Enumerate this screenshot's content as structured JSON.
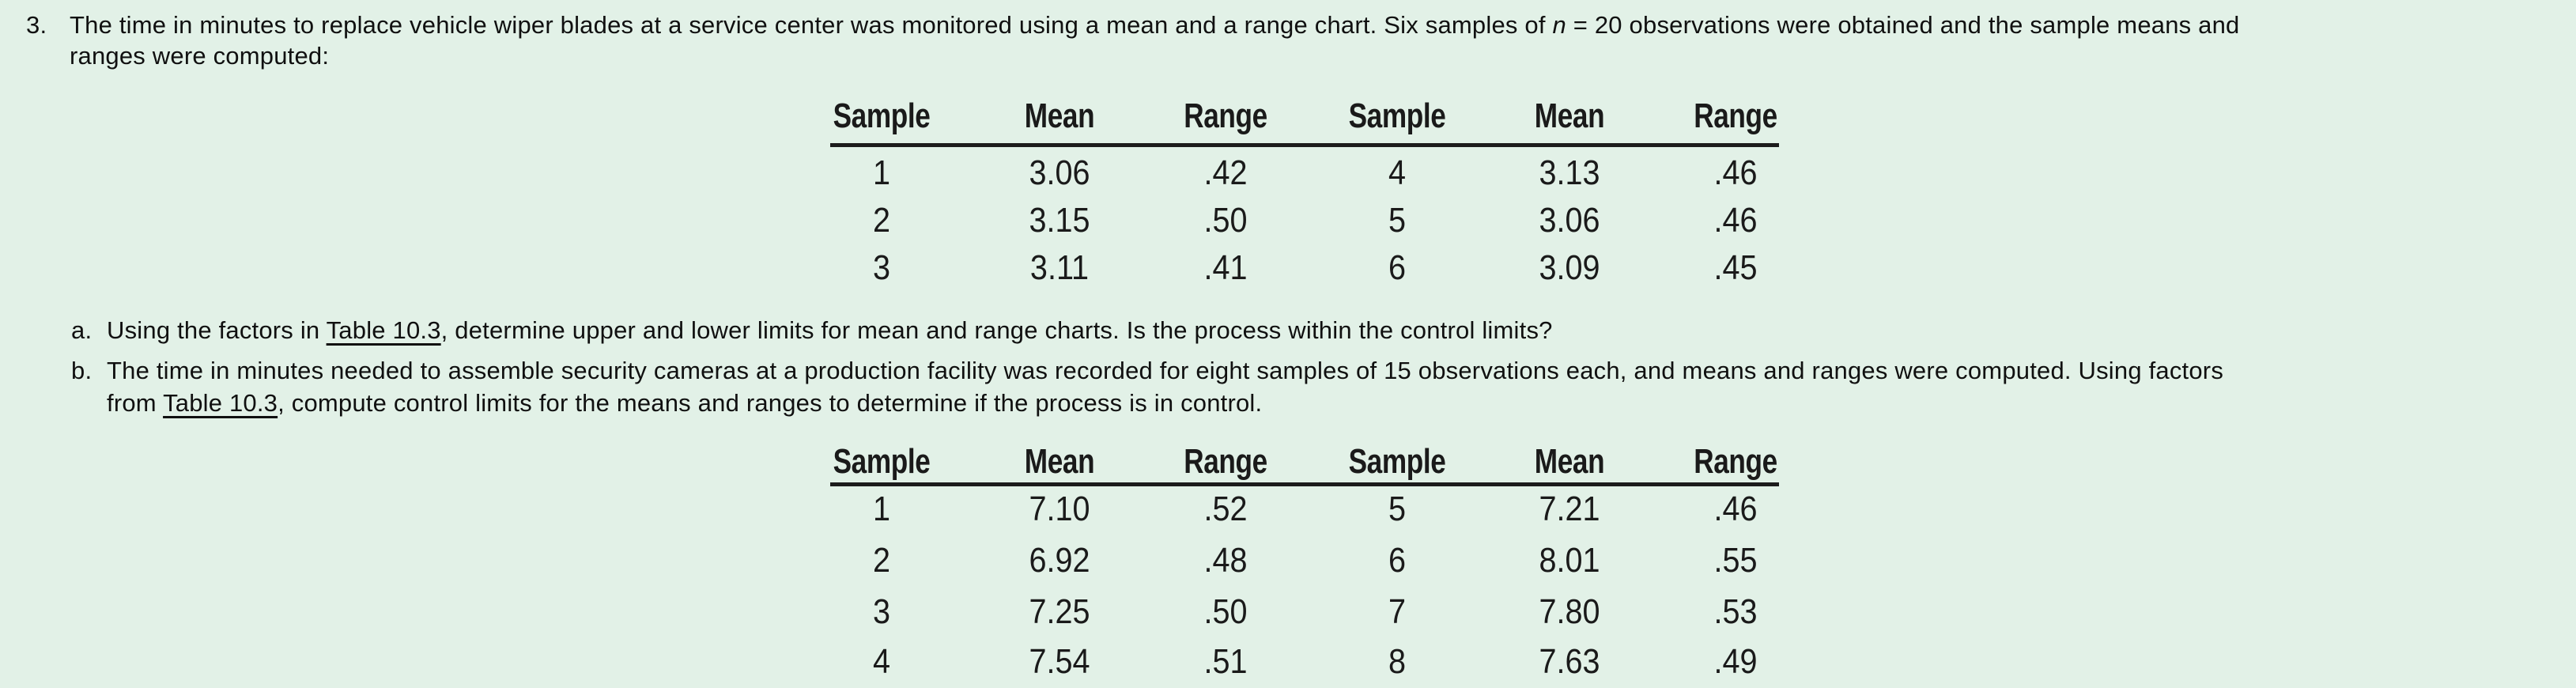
{
  "page": {
    "background_color": "#e2f1e7",
    "text_color": "#101010"
  },
  "problem": {
    "number": "3.",
    "line1_segments": [
      {
        "text": "The time in minutes to replace vehicle wiper blades at a service center was monitored using a mean and a range chart. Six samples of "
      },
      {
        "text": "n",
        "style": "italic"
      },
      {
        "text": " = 20 observations were obtained and the sample means and"
      }
    ],
    "line2_segments": [
      {
        "text": "ranges were computed:"
      }
    ]
  },
  "items": {
    "a": {
      "marker": "a.",
      "line1_segments": [
        {
          "text": "Using the factors in "
        },
        {
          "text": "Table 10.3",
          "style": "link"
        },
        {
          "text": ", determine upper and lower limits for mean and range charts. Is the process within the control limits?"
        }
      ]
    },
    "b": {
      "marker": "b.",
      "line1_segments": [
        {
          "text": "The time in minutes needed to assemble security cameras at a production facility was recorded for eight samples of 15 observations each, and means and ranges were computed. Using factors"
        }
      ],
      "line2_segments": [
        {
          "text": "from "
        },
        {
          "text": "Table 10.3",
          "style": "link"
        },
        {
          "text": ", compute control limits for the means and ranges to determine if the process is in control."
        }
      ]
    }
  },
  "tables": [
    {
      "name": "wiper-blade-samples",
      "headers": [
        "Sample",
        "Mean",
        "Range",
        "Sample",
        "Mean",
        "Range"
      ],
      "rows": [
        [
          "1",
          "3.06",
          ".42",
          "4",
          "3.13",
          ".46"
        ],
        [
          "2",
          "3.15",
          ".50",
          "5",
          "3.06",
          ".46"
        ],
        [
          "3",
          "3.11",
          ".41",
          "6",
          "3.09",
          ".45"
        ]
      ]
    },
    {
      "name": "security-camera-samples",
      "headers": [
        "Sample",
        "Mean",
        "Range",
        "Sample",
        "Mean",
        "Range"
      ],
      "rows": [
        [
          "1",
          "7.10",
          ".52",
          "5",
          "7.21",
          ".46"
        ],
        [
          "2",
          "6.92",
          ".48",
          "6",
          "8.01",
          ".55"
        ],
        [
          "3",
          "7.25",
          ".50",
          "7",
          "7.80",
          ".53"
        ],
        [
          "4",
          "7.54",
          ".51",
          "8",
          "7.63",
          ".49"
        ]
      ]
    }
  ]
}
